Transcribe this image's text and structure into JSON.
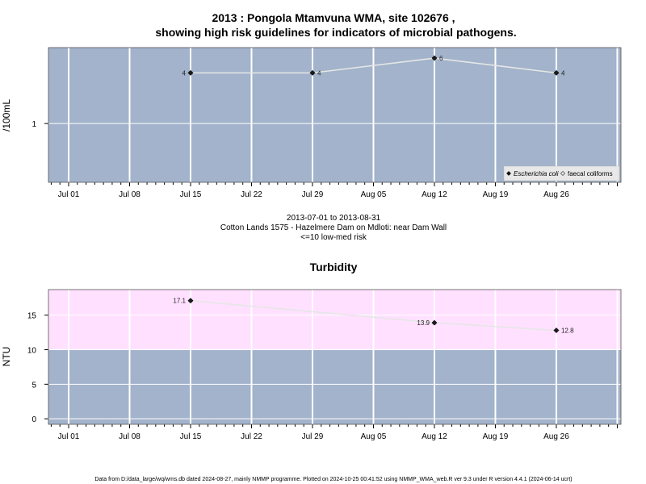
{
  "page": {
    "title_line1": "2013 : Pongola Mtamvuna WMA, site 102676 ,",
    "title_line2": "showing high risk guidelines for indicators of microbial pathogens.",
    "info_line1": "2013-07-01 to 2013-08-31",
    "info_line2": "Cotton Lands 1575 - Hazelmere Dam on Mdloti: near Dam Wall",
    "info_line3": "<=10 low-med risk",
    "footer": "Data from D:/data_large/wq/wms.db dated 2024-08-27, mainly NMMP programme. Plotted on 2024-10-25 00:41:52 using NMMP_WMA_web.R ver 9.3 under R version 4.4.1 (2024-06-14 ucrt)"
  },
  "colors": {
    "panel_bg": "#a2b3cb",
    "high_band": "#ffe0ff",
    "grid": "#ffffff",
    "line": "#e6e6e6",
    "point": "#1a1a1a"
  },
  "chart_data": [
    {
      "type": "line",
      "title": "",
      "ylabel": "/100mL",
      "xlabel": "",
      "x_ticks": [
        "Jul 01",
        "Jul 08",
        "Jul 15",
        "Jul 22",
        "Jul 29",
        "Aug 05",
        "Aug 12",
        "Aug 19",
        "Aug 26"
      ],
      "y_ticks": [
        "1"
      ],
      "y_scale": "log",
      "ylim": [
        0.2,
        8
      ],
      "grid": true,
      "legend_position": "bottom-right",
      "legend": [
        "Escherichia coli",
        "faecal coliforms"
      ],
      "series": [
        {
          "name": "Escherichia coli",
          "x": [
            "2013-07-15",
            "2013-07-29",
            "2013-08-12",
            "2013-08-26"
          ],
          "y": [
            4,
            4,
            6,
            4
          ],
          "labels": [
            "4",
            "4",
            "6",
            "4"
          ],
          "label_side": [
            "left",
            "right",
            "right",
            "right"
          ]
        }
      ]
    },
    {
      "type": "line",
      "title": "Turbidity",
      "ylabel": "NTU",
      "xlabel": "",
      "x_ticks": [
        "Jul 01",
        "Jul 08",
        "Jul 15",
        "Jul 22",
        "Jul 29",
        "Aug 05",
        "Aug 12",
        "Aug 19",
        "Aug 26"
      ],
      "y_ticks": [
        "0",
        "5",
        "10",
        "15"
      ],
      "ylim": [
        -0.8,
        18.7
      ],
      "grid": true,
      "high_risk_threshold": 10,
      "series": [
        {
          "name": "",
          "x": [
            "2013-07-15",
            "2013-08-12",
            "2013-08-26"
          ],
          "y": [
            17.1,
            13.9,
            12.8
          ],
          "labels": [
            "17.1",
            "13.9",
            "12.8"
          ],
          "label_side": [
            "left",
            "left",
            "right"
          ]
        }
      ]
    }
  ]
}
